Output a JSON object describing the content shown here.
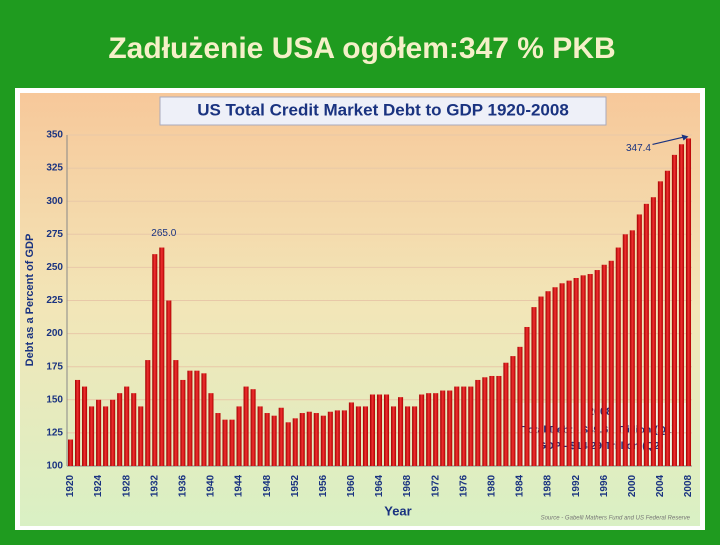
{
  "slide_title": "Zadłużenie USA ogółem:347 % PKB",
  "chart_data": {
    "type": "bar",
    "title": "US Total Credit Market Debt to GDP  1920-2008",
    "y_label": "Debt as a Percent of GDP",
    "x_label": "Year",
    "categories": [
      "1920",
      null,
      null,
      null,
      "1924",
      null,
      null,
      null,
      "1928",
      null,
      null,
      null,
      "1932",
      null,
      null,
      null,
      "1936",
      null,
      null,
      null,
      "1940",
      null,
      null,
      null,
      "1944",
      null,
      null,
      null,
      "1948",
      null,
      null,
      null,
      "1952",
      null,
      null,
      null,
      "1956",
      null,
      null,
      null,
      "1960",
      null,
      null,
      null,
      "1964",
      null,
      null,
      null,
      "1968",
      null,
      null,
      null,
      "1972",
      null,
      null,
      null,
      "1976",
      null,
      null,
      null,
      "1980",
      null,
      null,
      null,
      "1984",
      null,
      null,
      null,
      "1988",
      null,
      null,
      null,
      "1992",
      null,
      null,
      null,
      "1996",
      null,
      null,
      null,
      "2000",
      null,
      null,
      null,
      "2004",
      null,
      null,
      null,
      "2008"
    ],
    "values": [
      120,
      165,
      160,
      145,
      150,
      145,
      150,
      155,
      160,
      155,
      145,
      180,
      260,
      265,
      225,
      180,
      165,
      172,
      172,
      170,
      155,
      140,
      135,
      135,
      145,
      160,
      158,
      145,
      140,
      138,
      144,
      133,
      136,
      140,
      141,
      140,
      138,
      141,
      142,
      142,
      148,
      145,
      145,
      154,
      154,
      154,
      145,
      152,
      145,
      145,
      154,
      155,
      155,
      157,
      157,
      160,
      160,
      160,
      165,
      167,
      168,
      168,
      178,
      183,
      190,
      205,
      220,
      228,
      232,
      235,
      238,
      240,
      242,
      244,
      245,
      248,
      252,
      255,
      265,
      275,
      278,
      290,
      298,
      303,
      315,
      323,
      335,
      343,
      347.4
    ],
    "color": "#d81010",
    "ylim": [
      100,
      350
    ],
    "yticks": [
      100,
      125,
      150,
      175,
      200,
      225,
      250,
      275,
      300,
      325,
      350
    ],
    "grid": true,
    "annotations": [
      "265.0",
      "347.4"
    ],
    "note_title": "2008",
    "notes": [
      "Total Debt  - $49.61 Trillion (Q1)",
      "GDP - $14.29 Trillion (Q2)"
    ],
    "source": "Source - Gabelli Mathers Fund and US Federal Reserve"
  }
}
